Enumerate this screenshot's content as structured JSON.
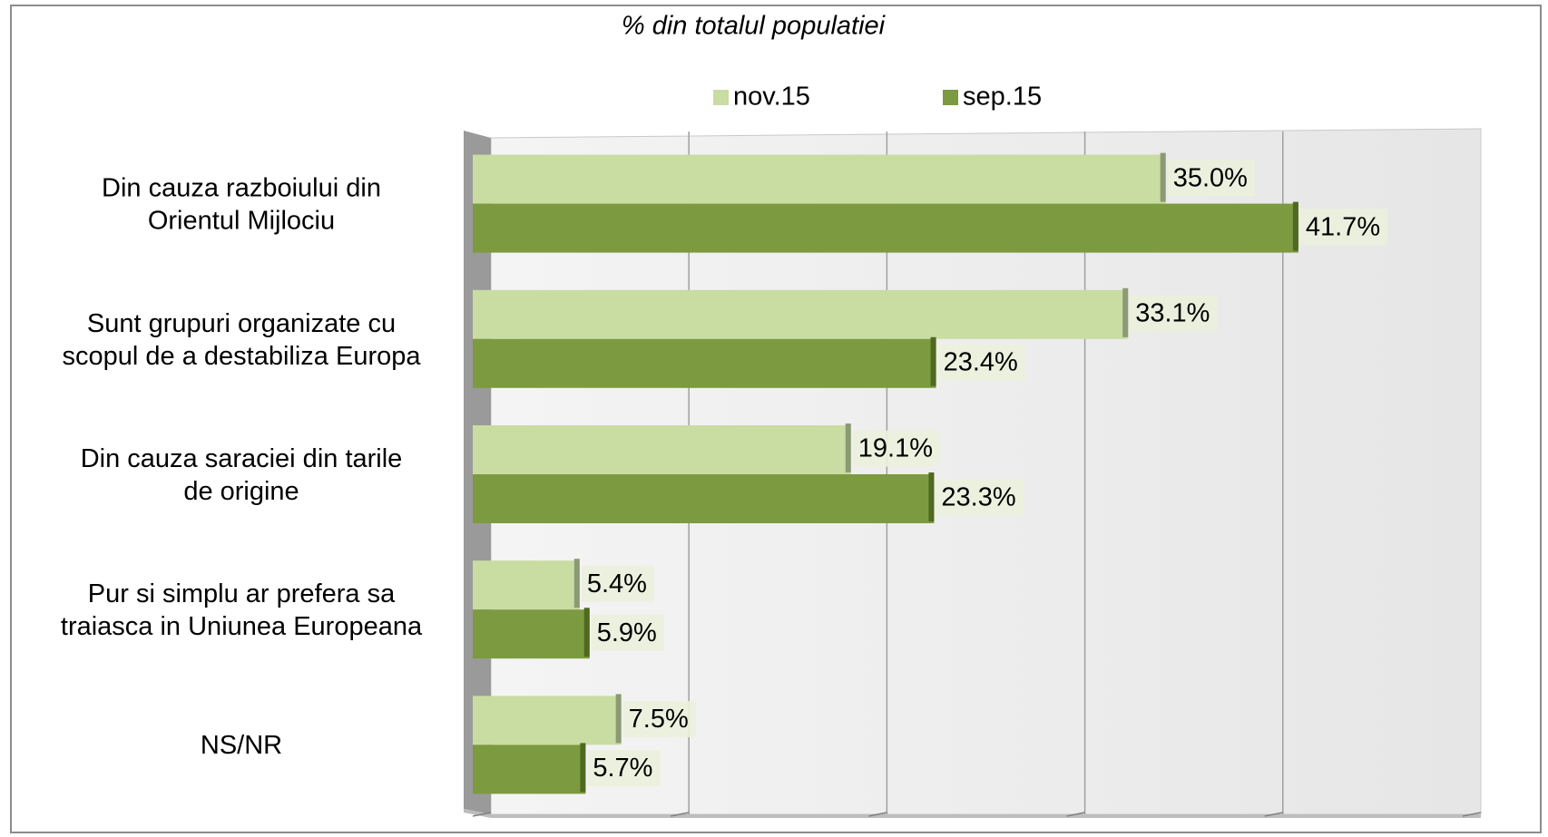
{
  "chart_data": {
    "type": "bar",
    "orientation": "horizontal",
    "title": "% din totalul populatiei",
    "categories": [
      "Din cauza razboiului din Orientul Mijlociu",
      "Sunt grupuri organizate cu scopul de a destabiliza Europa",
      "Din cauza saraciei din tarile de origine",
      "Pur si simplu ar prefera sa traiasca in Uniunea Europeana",
      "NS/NR"
    ],
    "series": [
      {
        "name": "nov.15",
        "color": "#c9dca2",
        "values": [
          35.0,
          33.1,
          19.1,
          5.4,
          7.5
        ],
        "value_labels": [
          "35.0%",
          "33.1%",
          "19.1%",
          "5.4%",
          "7.5%"
        ]
      },
      {
        "name": "sep.15",
        "color": "#7c9a3f",
        "values": [
          41.7,
          23.4,
          23.3,
          5.9,
          5.7
        ],
        "value_labels": [
          "41.7%",
          "23.4%",
          "23.3%",
          "5.9%",
          "5.7%"
        ]
      }
    ],
    "xlim": [
      0,
      50
    ],
    "xticks": [
      0,
      10,
      20,
      30,
      40,
      50
    ],
    "grid": true,
    "legend": "top"
  }
}
